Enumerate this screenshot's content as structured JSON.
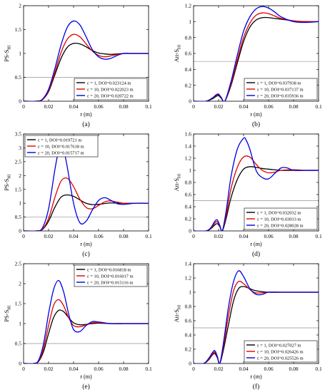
{
  "chart_data": [
    {
      "id": "a",
      "type": "line",
      "panel_label": "(a)",
      "xlabel": "r (m)",
      "ylabel": "PS-S",
      "ylabel_sub": "HI",
      "xlim": [
        0,
        0.1
      ],
      "ylim": [
        0,
        2
      ],
      "xticks": [
        0,
        0.02,
        0.04,
        0.06,
        0.08,
        0.1
      ],
      "xtick_labels": [
        "0",
        "0.02",
        "0.04",
        "0.06",
        "0.08",
        "0.1"
      ],
      "yticks": [
        0,
        0.5,
        1,
        1.5,
        2
      ],
      "ytick_labels": [
        "0",
        "0.5",
        "1",
        "1.5",
        "2"
      ],
      "threshold": 0.5,
      "legend_position": "bottom-right",
      "series": [
        {
          "name": "ε = 1,   DOI=0.023124 m",
          "color": "#000000",
          "x": [
            0,
            0.01,
            0.015,
            0.02,
            0.025,
            0.03,
            0.035,
            0.04,
            0.045,
            0.05,
            0.055,
            0.06,
            0.065,
            0.07,
            0.075,
            0.08,
            0.085,
            0.09,
            0.1
          ],
          "y": [
            0,
            0,
            0.03,
            0.2,
            0.55,
            0.9,
            1.13,
            1.21,
            1.2,
            1.14,
            1.06,
            1.01,
            0.99,
            0.98,
            0.99,
            1.0,
            1.0,
            1.0,
            1.0
          ]
        },
        {
          "name": "ε = 10, DOI=0.022023 m",
          "color": "#e00000",
          "x": [
            0,
            0.01,
            0.015,
            0.02,
            0.025,
            0.03,
            0.035,
            0.04,
            0.045,
            0.05,
            0.055,
            0.06,
            0.065,
            0.07,
            0.075,
            0.08,
            0.085,
            0.09,
            0.1
          ],
          "y": [
            0,
            0,
            0.03,
            0.22,
            0.6,
            1.02,
            1.3,
            1.4,
            1.35,
            1.2,
            1.05,
            0.96,
            0.93,
            0.95,
            0.98,
            1.0,
            1.0,
            1.0,
            1.0
          ]
        },
        {
          "name": "ε = 20, DOI=0.020722 m",
          "color": "#0000e0",
          "x": [
            0,
            0.01,
            0.015,
            0.02,
            0.025,
            0.03,
            0.035,
            0.04,
            0.045,
            0.05,
            0.055,
            0.06,
            0.065,
            0.07,
            0.075,
            0.08,
            0.085,
            0.09,
            0.1
          ],
          "y": [
            0,
            0,
            0.04,
            0.25,
            0.68,
            1.18,
            1.55,
            1.68,
            1.6,
            1.35,
            1.08,
            0.93,
            0.88,
            0.9,
            0.96,
            1.0,
            1.0,
            1.0,
            1.0
          ]
        }
      ]
    },
    {
      "id": "b",
      "type": "line",
      "panel_label": "(b)",
      "xlabel": "r (m)",
      "ylabel": "Att-S",
      "ylabel_sub": "HI",
      "xlim": [
        0,
        0.1
      ],
      "ylim": [
        0,
        1.2
      ],
      "xticks": [
        0,
        0.02,
        0.04,
        0.06,
        0.08,
        0.1
      ],
      "xtick_labels": [
        "0",
        "0.02",
        "0.04",
        "0.06",
        "0.08",
        "0.1"
      ],
      "yticks": [
        0,
        0.2,
        0.4,
        0.6,
        0.8,
        1,
        1.2
      ],
      "ytick_labels": [
        "0",
        "0.2",
        "0.4",
        "0.6",
        "0.8",
        "1",
        "1.2"
      ],
      "threshold": 0.5,
      "legend_position": "bottom-right",
      "series": [
        {
          "name": "ε = 1,   DOI=0.037938 m",
          "color": "#000000",
          "x": [
            0,
            0.01,
            0.015,
            0.018,
            0.02,
            0.022,
            0.025,
            0.03,
            0.035,
            0.04,
            0.045,
            0.05,
            0.055,
            0.06,
            0.065,
            0.07,
            0.08,
            0.09,
            0.1
          ],
          "y": [
            0,
            0,
            0.03,
            0.06,
            0.07,
            0.04,
            0.0,
            0.2,
            0.48,
            0.75,
            0.93,
            1.02,
            1.05,
            1.05,
            1.04,
            1.03,
            1.01,
            1.0,
            1.0
          ]
        },
        {
          "name": "ε = 10, DOI=0.037137 m",
          "color": "#e00000",
          "x": [
            0,
            0.01,
            0.015,
            0.018,
            0.02,
            0.022,
            0.025,
            0.03,
            0.035,
            0.04,
            0.045,
            0.05,
            0.055,
            0.06,
            0.065,
            0.07,
            0.08,
            0.09,
            0.1
          ],
          "y": [
            0,
            0,
            0.04,
            0.07,
            0.08,
            0.05,
            0.0,
            0.22,
            0.52,
            0.8,
            0.98,
            1.08,
            1.11,
            1.1,
            1.07,
            1.04,
            1.01,
            1.0,
            1.0
          ]
        },
        {
          "name": "ε = 20, DOI=0.035936 m",
          "color": "#0000e0",
          "x": [
            0,
            0.01,
            0.015,
            0.018,
            0.02,
            0.022,
            0.025,
            0.03,
            0.035,
            0.04,
            0.045,
            0.05,
            0.055,
            0.06,
            0.065,
            0.07,
            0.08,
            0.09,
            0.1
          ],
          "y": [
            0,
            0,
            0.04,
            0.08,
            0.09,
            0.05,
            0.0,
            0.25,
            0.58,
            0.88,
            1.06,
            1.16,
            1.19,
            1.17,
            1.12,
            1.06,
            1.0,
            0.99,
            1.0
          ]
        }
      ]
    },
    {
      "id": "c",
      "type": "line",
      "panel_label": "(c)",
      "xlabel": "r (m)",
      "ylabel": "PS-S",
      "ylabel_sub": "HI",
      "xlim": [
        0,
        0.1
      ],
      "ylim": [
        0,
        3.5
      ],
      "xticks": [
        0,
        0.02,
        0.04,
        0.06,
        0.08,
        0.1
      ],
      "xtick_labels": [
        "0",
        "0.02",
        "0.04",
        "0.06",
        "0.08",
        "0.1"
      ],
      "yticks": [
        0,
        0.5,
        1,
        1.5,
        2,
        2.5,
        3,
        3.5
      ],
      "ytick_labels": [
        "0",
        "0.5",
        "1",
        "1.5",
        "2",
        "2.5",
        "3",
        "3.5"
      ],
      "threshold": 0.5,
      "legend_position": "top-left",
      "series": [
        {
          "name": "ε = 1,   DOI=0.019721 m",
          "color": "#000000",
          "x": [
            0,
            0.01,
            0.015,
            0.02,
            0.025,
            0.03,
            0.035,
            0.04,
            0.045,
            0.05,
            0.055,
            0.06,
            0.065,
            0.07,
            0.08,
            0.09,
            0.1
          ],
          "y": [
            0,
            0,
            0.05,
            0.35,
            0.85,
            1.22,
            1.3,
            1.25,
            1.12,
            1.0,
            0.95,
            0.96,
            0.99,
            1.01,
            1.0,
            1.0,
            1.0
          ]
        },
        {
          "name": "ε = 10, DOI=0.017618 m",
          "color": "#e00000",
          "x": [
            0,
            0.01,
            0.015,
            0.02,
            0.025,
            0.03,
            0.035,
            0.04,
            0.045,
            0.05,
            0.055,
            0.06,
            0.065,
            0.07,
            0.08,
            0.09,
            0.1
          ],
          "y": [
            0,
            0,
            0.06,
            0.45,
            1.2,
            1.8,
            1.9,
            1.6,
            1.15,
            0.85,
            0.8,
            0.92,
            1.05,
            1.08,
            1.0,
            1.0,
            1.0
          ]
        },
        {
          "name": "ε = 20, DOI=0.015717 m",
          "color": "#0000e0",
          "x": [
            0,
            0.01,
            0.015,
            0.02,
            0.025,
            0.028,
            0.03,
            0.032,
            0.035,
            0.04,
            0.045,
            0.05,
            0.055,
            0.06,
            0.065,
            0.07,
            0.075,
            0.08,
            0.09,
            0.1
          ],
          "y": [
            0,
            0,
            0.1,
            0.8,
            2.2,
            2.9,
            3.1,
            2.95,
            2.3,
            1.0,
            0.3,
            0.35,
            0.75,
            1.1,
            1.2,
            1.1,
            0.98,
            0.96,
            1.0,
            1.0
          ]
        }
      ]
    },
    {
      "id": "d",
      "type": "line",
      "panel_label": "(d)",
      "xlabel": "r (m)",
      "ylabel": "Att-S",
      "ylabel_sub": "HI",
      "xlim": [
        0,
        0.1
      ],
      "ylim": [
        0,
        1.6
      ],
      "xticks": [
        0,
        0.02,
        0.04,
        0.06,
        0.08,
        0.1
      ],
      "xtick_labels": [
        "0",
        "0.02",
        "0.04",
        "0.06",
        "0.08",
        "0.1"
      ],
      "yticks": [
        0,
        0.2,
        0.4,
        0.6,
        0.8,
        1,
        1.2,
        1.4,
        1.6
      ],
      "ytick_labels": [
        "0",
        "0.2",
        "0.4",
        "0.6",
        "0.8",
        "1",
        "1.2",
        "1.4",
        "1.6"
      ],
      "threshold": 0.5,
      "legend_position": "bottom-right",
      "series": [
        {
          "name": "ε = 1,   DOI=0.032032 m",
          "color": "#000000",
          "x": [
            0,
            0.01,
            0.014,
            0.017,
            0.019,
            0.021,
            0.023,
            0.026,
            0.03,
            0.035,
            0.04,
            0.045,
            0.05,
            0.055,
            0.06,
            0.07,
            0.08,
            0.09,
            0.1
          ],
          "y": [
            0,
            0,
            0.04,
            0.1,
            0.12,
            0.07,
            0.0,
            0.2,
            0.55,
            0.85,
            1.02,
            1.06,
            1.05,
            1.03,
            1.02,
            1.0,
            1.0,
            1.0,
            1.0
          ]
        },
        {
          "name": "ε = 10, DOI=0.03033 m",
          "color": "#e00000",
          "x": [
            0,
            0.01,
            0.014,
            0.017,
            0.019,
            0.021,
            0.023,
            0.026,
            0.03,
            0.035,
            0.04,
            0.045,
            0.05,
            0.055,
            0.06,
            0.065,
            0.07,
            0.08,
            0.09,
            0.1
          ],
          "y": [
            0,
            0,
            0.05,
            0.13,
            0.15,
            0.08,
            0.0,
            0.25,
            0.7,
            1.05,
            1.22,
            1.22,
            1.1,
            1.0,
            0.96,
            0.97,
            1.0,
            1.01,
            1.0,
            1.0
          ]
        },
        {
          "name": "ε = 20, DOI=0.028028 m",
          "color": "#0000e0",
          "x": [
            0,
            0.01,
            0.014,
            0.017,
            0.019,
            0.021,
            0.023,
            0.026,
            0.03,
            0.035,
            0.04,
            0.042,
            0.045,
            0.05,
            0.055,
            0.06,
            0.065,
            0.07,
            0.075,
            0.08,
            0.09,
            0.1
          ],
          "y": [
            0,
            0,
            0.06,
            0.16,
            0.18,
            0.09,
            0.0,
            0.32,
            0.9,
            1.35,
            1.53,
            1.5,
            1.35,
            1.0,
            0.88,
            0.86,
            0.95,
            1.04,
            1.04,
            1.0,
            1.0,
            1.0
          ]
        }
      ]
    },
    {
      "id": "e",
      "type": "line",
      "panel_label": "(e)",
      "xlabel": "r (m)",
      "ylabel": "PS-S",
      "ylabel_sub": "HI",
      "xlim": [
        0,
        0.1
      ],
      "ylim": [
        0,
        2.5
      ],
      "xticks": [
        0,
        0.02,
        0.04,
        0.06,
        0.08,
        0.1
      ],
      "xtick_labels": [
        "0",
        "0.02",
        "0.04",
        "0.06",
        "0.08",
        "0.1"
      ],
      "yticks": [
        0,
        0.5,
        1,
        1.5,
        2,
        2.5
      ],
      "ytick_labels": [
        "0",
        "0.5",
        "1",
        "1.5",
        "2",
        "2.5"
      ],
      "threshold": 0.5,
      "legend_position": "top-right",
      "series": [
        {
          "name": "ε = 1,   DOI=0.016818 m",
          "color": "#000000",
          "x": [
            0,
            0.008,
            0.012,
            0.016,
            0.02,
            0.024,
            0.028,
            0.032,
            0.036,
            0.04,
            0.045,
            0.05,
            0.055,
            0.06,
            0.07,
            0.08,
            0.09,
            0.1
          ],
          "y": [
            0,
            0,
            0.05,
            0.3,
            0.75,
            1.15,
            1.33,
            1.3,
            1.15,
            1.02,
            0.97,
            0.98,
            1.0,
            1.01,
            1.0,
            1.0,
            1.0,
            1.0
          ]
        },
        {
          "name": "ε = 10, DOI=0.016017 m",
          "color": "#e00000",
          "x": [
            0,
            0.008,
            0.012,
            0.016,
            0.02,
            0.024,
            0.028,
            0.032,
            0.036,
            0.04,
            0.045,
            0.05,
            0.055,
            0.06,
            0.07,
            0.08,
            0.09,
            0.1
          ],
          "y": [
            0,
            0,
            0.06,
            0.38,
            0.95,
            1.45,
            1.6,
            1.45,
            1.15,
            0.95,
            0.92,
            0.97,
            1.02,
            1.02,
            1.0,
            1.0,
            1.0,
            1.0
          ]
        },
        {
          "name": "ε = 20, DOI=0.015116 m",
          "color": "#0000e0",
          "x": [
            0,
            0.008,
            0.012,
            0.016,
            0.02,
            0.024,
            0.028,
            0.032,
            0.036,
            0.04,
            0.045,
            0.05,
            0.055,
            0.06,
            0.07,
            0.08,
            0.09,
            0.1
          ],
          "y": [
            0,
            0,
            0.08,
            0.5,
            1.25,
            1.85,
            2.08,
            1.8,
            1.25,
            0.85,
            0.8,
            0.95,
            1.05,
            1.04,
            1.0,
            1.0,
            1.0,
            1.0
          ]
        }
      ]
    },
    {
      "id": "f",
      "type": "line",
      "panel_label": "(f)",
      "xlabel": "r (m)",
      "ylabel": "Att-S",
      "ylabel_sub": "HI",
      "xlim": [
        0,
        0.1
      ],
      "ylim": [
        0,
        1.4
      ],
      "xticks": [
        0,
        0.02,
        0.04,
        0.06,
        0.08,
        0.1
      ],
      "xtick_labels": [
        "0",
        "0.02",
        "0.04",
        "0.06",
        "0.08",
        "0.1"
      ],
      "yticks": [
        0,
        0.2,
        0.4,
        0.6,
        0.8,
        1,
        1.2,
        1.4
      ],
      "ytick_labels": [
        "0",
        "0.2",
        "0.4",
        "0.6",
        "0.8",
        "1",
        "1.2",
        "1.4"
      ],
      "threshold": 0.5,
      "legend_position": "bottom-right",
      "series": [
        {
          "name": "ε = 1,   DOI=0.027027 m",
          "color": "#000000",
          "x": [
            0,
            0.008,
            0.012,
            0.015,
            0.017,
            0.019,
            0.021,
            0.024,
            0.028,
            0.032,
            0.036,
            0.04,
            0.045,
            0.05,
            0.06,
            0.07,
            0.08,
            0.09,
            0.1
          ],
          "y": [
            0,
            0,
            0.05,
            0.12,
            0.14,
            0.08,
            0.0,
            0.2,
            0.55,
            0.88,
            1.05,
            1.08,
            1.05,
            1.02,
            1.0,
            1.0,
            1.0,
            1.0,
            1.0
          ]
        },
        {
          "name": "ε = 10, DOI=0.026426 m",
          "color": "#e00000",
          "x": [
            0,
            0.008,
            0.012,
            0.015,
            0.017,
            0.019,
            0.021,
            0.024,
            0.028,
            0.032,
            0.036,
            0.04,
            0.045,
            0.05,
            0.06,
            0.07,
            0.08,
            0.09,
            0.1
          ],
          "y": [
            0,
            0,
            0.06,
            0.13,
            0.16,
            0.09,
            0.0,
            0.25,
            0.68,
            1.02,
            1.15,
            1.12,
            1.04,
            0.99,
            1.0,
            1.0,
            1.0,
            1.0,
            1.0
          ]
        },
        {
          "name": "ε = 20, DOI=0.025526 m",
          "color": "#0000e0",
          "x": [
            0,
            0.008,
            0.012,
            0.015,
            0.017,
            0.019,
            0.021,
            0.024,
            0.028,
            0.032,
            0.036,
            0.04,
            0.045,
            0.05,
            0.055,
            0.06,
            0.07,
            0.08,
            0.09,
            0.1
          ],
          "y": [
            0,
            0,
            0.07,
            0.15,
            0.18,
            0.1,
            0.0,
            0.3,
            0.8,
            1.15,
            1.3,
            1.22,
            1.05,
            0.97,
            0.97,
            1.0,
            1.0,
            1.0,
            1.0,
            1.0
          ]
        }
      ]
    }
  ]
}
